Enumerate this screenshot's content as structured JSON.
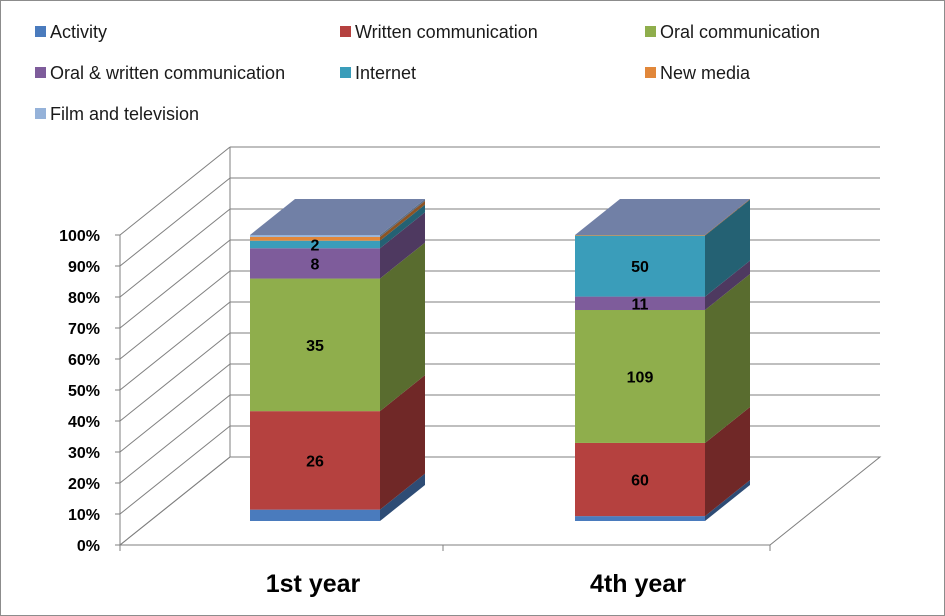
{
  "chart_data": {
    "type": "bar",
    "stacked": "percent",
    "three_d": true,
    "categories": [
      "1st year",
      "4th year"
    ],
    "ylim": [
      0,
      100
    ],
    "yticks": [
      "0%",
      "10%",
      "20%",
      "30%",
      "40%",
      "50%",
      "60%",
      "70%",
      "80%",
      "90%",
      "100%"
    ],
    "grid": true,
    "legend_position": "top",
    "series": [
      {
        "name": "Activity",
        "values": [
          3,
          4
        ],
        "color": "#4a7bbd"
      },
      {
        "name": "Written communication",
        "values": [
          26,
          60
        ],
        "color": "#b5413f"
      },
      {
        "name": "Oral communication",
        "values": [
          35,
          109
        ],
        "color": "#8fae4c"
      },
      {
        "name": "Oral & written communication",
        "values": [
          8,
          11
        ],
        "color": "#7e5c9b"
      },
      {
        "name": "Internet",
        "values": [
          2,
          50
        ],
        "color": "#3a9dba"
      },
      {
        "name": "New media",
        "values": [
          1,
          0.5
        ],
        "color": "#e1873a"
      },
      {
        "name": "Film and television",
        "values": [
          0.5,
          0
        ],
        "color": "#95b2d9"
      }
    ],
    "data_labels": [
      [
        null,
        null
      ],
      [
        "26",
        "60"
      ],
      [
        "35",
        "109"
      ],
      [
        "8",
        "11"
      ],
      [
        "2",
        "50"
      ],
      [
        null,
        null
      ],
      [
        null,
        null
      ]
    ]
  }
}
